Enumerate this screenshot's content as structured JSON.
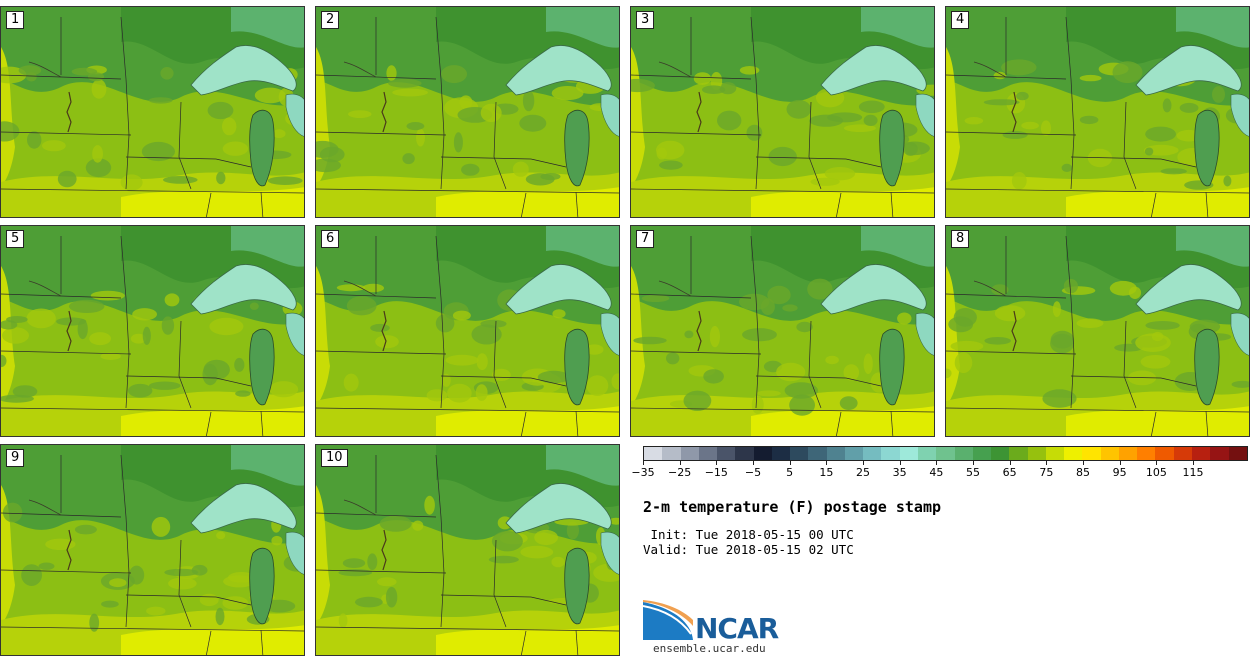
{
  "panels": [
    {
      "label": "1"
    },
    {
      "label": "2"
    },
    {
      "label": "3"
    },
    {
      "label": "4"
    },
    {
      "label": "5"
    },
    {
      "label": "6"
    },
    {
      "label": "7"
    },
    {
      "label": "8"
    },
    {
      "label": "9"
    },
    {
      "label": "10"
    }
  ],
  "colorbar": {
    "ticks": [
      "−35",
      "−25",
      "−15",
      "−5",
      "5",
      "15",
      "25",
      "35",
      "45",
      "55",
      "65",
      "75",
      "85",
      "95",
      "105",
      "115"
    ],
    "colors": [
      "#d8dce4",
      "#b5bcc8",
      "#8f98a9",
      "#6b7589",
      "#4a5469",
      "#2d364a",
      "#141c30",
      "#1c2d44",
      "#2d4a5e",
      "#3e6678",
      "#4f8290",
      "#619fa9",
      "#75bcc0",
      "#8cd7d2",
      "#9ee9da",
      "#7fd2b0",
      "#6fc28e",
      "#5ab06e",
      "#46a04f",
      "#3d9434",
      "#6bab1c",
      "#96c10e",
      "#c6dc06",
      "#eef000",
      "#ffe400",
      "#ffc400",
      "#ffa200",
      "#ff7f00",
      "#ef5a00",
      "#d63a08",
      "#b72010",
      "#961414",
      "#741010"
    ]
  },
  "title": "2-m temperature (F) postage stamp",
  "init": " Init: Tue 2018-05-15 00 UTC",
  "valid": "Valid: Tue 2018-05-15 02 UTC",
  "logo": {
    "text": "NCAR",
    "url": "ensemble.ucar.edu"
  }
}
